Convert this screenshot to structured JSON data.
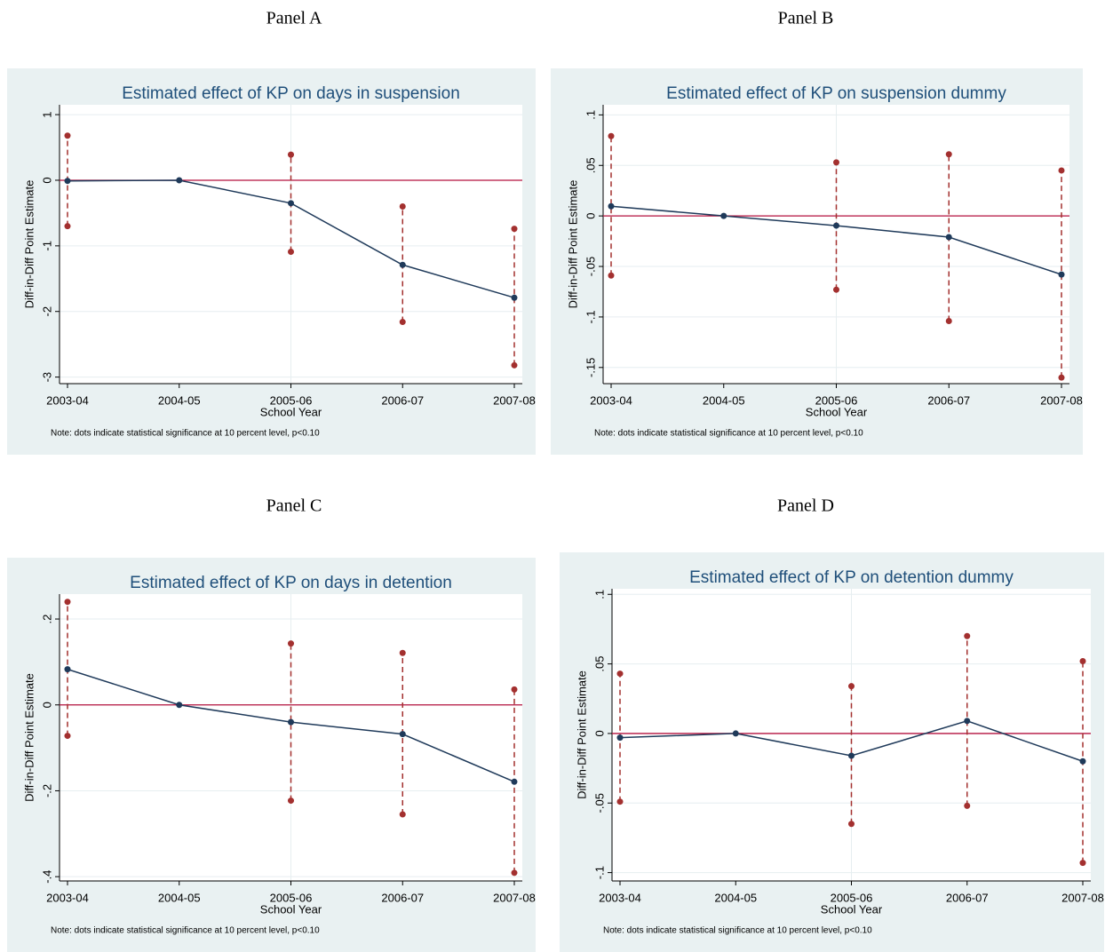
{
  "chart_data": [
    {
      "type": "line",
      "panel_label": "Panel A",
      "title": "Estimated effect of KP on days in suspension",
      "xlabel": "School Year",
      "ylabel": "Diff-in-Diff Point Estimate",
      "note": "Note: dots indicate statistical significance at 10 percent level, p<0.10",
      "categories": [
        "2003-04",
        "2004-05",
        "2005-06",
        "2006-07",
        "2007-08"
      ],
      "series": [
        {
          "color": "#1f3a5a",
          "values": [
            -0.01,
            0,
            -0.35,
            -1.29,
            -1.79
          ],
          "ci_lower": [
            -0.7,
            null,
            -1.09,
            -2.16,
            -2.82
          ],
          "ci_upper": [
            0.68,
            null,
            0.39,
            -0.4,
            -0.74
          ],
          "ci_color": "#a3302f"
        }
      ],
      "reference_line": 0,
      "reference_color": "#b5123e",
      "ylim": [
        -3.1,
        1.15
      ],
      "yticks": [
        1,
        0,
        -1,
        -2,
        -3
      ],
      "grid": true
    },
    {
      "type": "line",
      "panel_label": "Panel B",
      "title": "Estimated effect of KP on suspension dummy",
      "xlabel": "School Year",
      "ylabel": "Diff-in-Diff Point Estimate",
      "note": "Note: dots indicate statistical significance at 10 percent level, p<0.10",
      "categories": [
        "2003-04",
        "2004-05",
        "2005-06",
        "2006-07",
        "2007-08"
      ],
      "series": [
        {
          "color": "#1f3a5a",
          "values": [
            0.0096,
            0,
            -0.0096,
            -0.021,
            -0.058
          ],
          "ci_lower": [
            -0.059,
            null,
            -0.073,
            -0.104,
            -0.16
          ],
          "ci_upper": [
            0.079,
            null,
            0.053,
            0.061,
            0.045
          ],
          "ci_color": "#a3302f"
        }
      ],
      "reference_line": 0,
      "reference_color": "#b5123e",
      "ylim": [
        -0.166,
        0.11
      ],
      "yticks": [
        {
          "value": 0.1,
          "label": ".1"
        },
        {
          "value": 0.05,
          "label": ".05"
        },
        0,
        {
          "value": -0.05,
          "label": "-.05"
        },
        {
          "value": -0.1,
          "label": "-.1"
        },
        {
          "value": -0.15,
          "label": "-.15"
        }
      ],
      "grid": true
    },
    {
      "type": "line",
      "panel_label": "Panel C",
      "title": "Estimated effect of KP on days in detention",
      "xlabel": "School Year",
      "ylabel": "Diff-in-Diff Point Estimate",
      "note": "Note: dots indicate statistical significance at 10 percent level, p<0.10",
      "categories": [
        "2003-04",
        "2004-05",
        "2005-06",
        "2006-07",
        "2007-08"
      ],
      "series": [
        {
          "color": "#1f3a5a",
          "values": [
            0.083,
            0,
            -0.04,
            -0.068,
            -0.179
          ],
          "ci_lower": [
            -0.072,
            null,
            -0.223,
            -0.255,
            -0.391
          ],
          "ci_upper": [
            0.24,
            null,
            0.143,
            0.121,
            0.036
          ],
          "ci_color": "#a3302f"
        }
      ],
      "reference_line": 0,
      "reference_color": "#b5123e",
      "ylim": [
        -0.41,
        0.258
      ],
      "yticks": [
        {
          "value": 0.2,
          "label": ".2"
        },
        0,
        {
          "value": -0.2,
          "label": "-.2"
        },
        {
          "value": -0.4,
          "label": "-.4"
        }
      ],
      "grid": true
    },
    {
      "type": "line",
      "panel_label": "Panel D",
      "title": "Estimated effect of KP on detention dummy",
      "xlabel": "School Year",
      "ylabel": "Diff-in-Diff Point Estimate",
      "note": "Note: dots indicate statistical significance at 10 percent level, p<0.10",
      "categories": [
        "2003-04",
        "2004-05",
        "2005-06",
        "2006-07",
        "2007-08"
      ],
      "series": [
        {
          "color": "#1f3a5a",
          "values": [
            -0.003,
            0,
            -0.016,
            0.009,
            -0.02
          ],
          "ci_lower": [
            -0.049,
            null,
            -0.065,
            -0.052,
            -0.093
          ],
          "ci_upper": [
            0.043,
            null,
            0.034,
            0.07,
            0.052
          ],
          "ci_color": "#a3302f"
        }
      ],
      "reference_line": 0,
      "reference_color": "#b5123e",
      "ylim": [
        -0.106,
        0.104
      ],
      "yticks": [
        {
          "value": 0.1,
          "label": ".1"
        },
        {
          "value": 0.05,
          "label": ".05"
        },
        0,
        {
          "value": -0.05,
          "label": "-.05"
        },
        {
          "value": -0.1,
          "label": "-.1"
        }
      ],
      "grid": true
    }
  ]
}
